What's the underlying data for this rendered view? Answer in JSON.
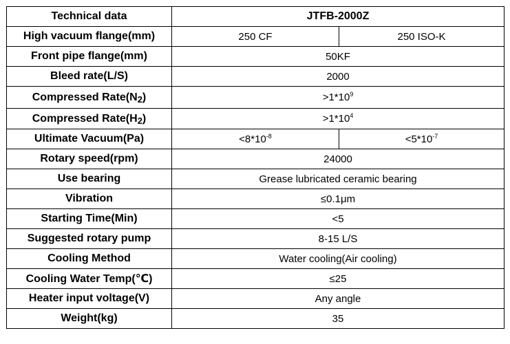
{
  "header": {
    "label": "Technical data",
    "model": "JTFB-2000Z"
  },
  "rows": {
    "high_vacuum_flange": {
      "label": "High vacuum flange(mm)",
      "value_a": "250 CF",
      "value_b": "250 ISO-K"
    },
    "front_pipe_flange": {
      "label": "Front pipe flange(mm)",
      "value": "50KF"
    },
    "bleed_rate": {
      "label": "Bleed rate(L/S)",
      "value": "2000"
    },
    "compressed_n2": {
      "label_prefix": "Compressed Rate(N",
      "label_sub": "2",
      "label_suffix": ")",
      "value_base": ">1*10",
      "value_exp": "9"
    },
    "compressed_h2": {
      "label_prefix": "Compressed Rate(H",
      "label_sub": "2",
      "label_suffix": ")",
      "value_base": ">1*10",
      "value_exp": "4"
    },
    "ultimate_vacuum": {
      "label": "Ultimate Vacuum(Pa)",
      "a_base": "<8*10",
      "a_exp": "-8",
      "b_base": "<5*10",
      "b_exp": "-7"
    },
    "rotary_speed": {
      "label": "Rotary speed(rpm)",
      "value": "24000"
    },
    "use_bearing": {
      "label": "Use bearing",
      "value": "Grease lubricated ceramic bearing"
    },
    "vibration": {
      "label": "Vibration",
      "value": "≤0.1μm"
    },
    "starting_time": {
      "label": "Starting Time(Min)",
      "value": "<5"
    },
    "suggested_pump": {
      "label": "Suggested rotary pump",
      "value": "8-15 L/S"
    },
    "cooling_method": {
      "label": "Cooling Method",
      "value": "Water cooling(Air cooling)"
    },
    "cooling_temp": {
      "label": "Cooling Water Temp(℃)",
      "value": "≤25"
    },
    "heater_voltage": {
      "label": "Heater input voltage(V)",
      "value": "Any angle"
    },
    "weight": {
      "label": "Weight(kg)",
      "value": "35"
    }
  }
}
